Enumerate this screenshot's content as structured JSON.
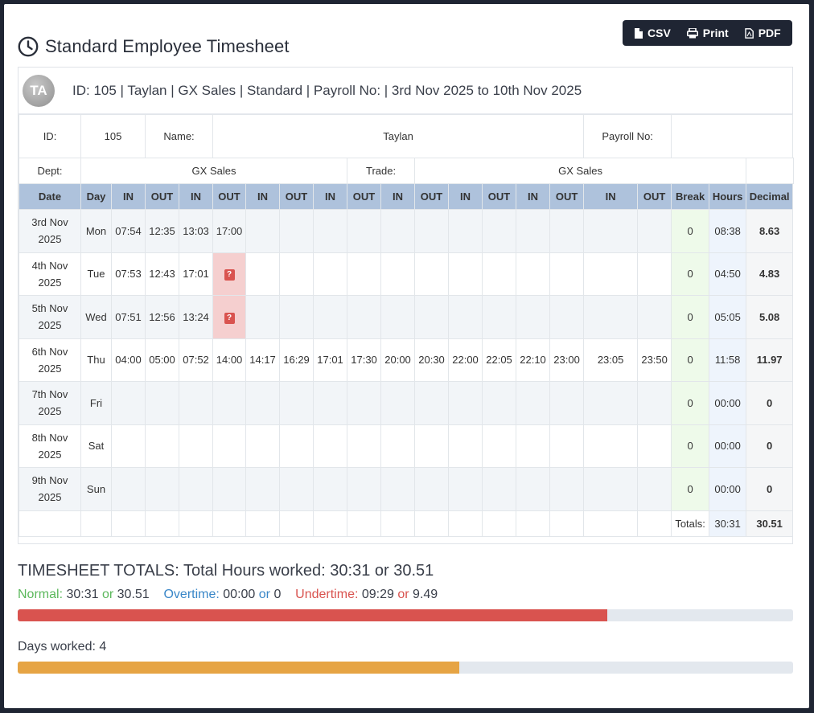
{
  "toolbar": {
    "csv_label": "CSV",
    "print_label": "Print",
    "pdf_label": "PDF"
  },
  "page_title": "Standard Employee Timesheet",
  "employee": {
    "initials": "TA",
    "header": "ID: 105 | Taylan | GX Sales | Standard | Payroll No: | 3rd Nov 2025 to 10th Nov 2025",
    "id_label": "ID:",
    "id_value": "105",
    "name_label": "Name:",
    "name_value": "Taylan",
    "payroll_label": "Payroll No:",
    "payroll_value": "",
    "dept_label": "Dept:",
    "dept_value": "GX Sales",
    "trade_label": "Trade:",
    "trade_value": "GX Sales"
  },
  "columns": [
    "Date",
    "Day",
    "IN",
    "OUT",
    "IN",
    "OUT",
    "IN",
    "OUT",
    "IN",
    "OUT",
    "IN",
    "OUT",
    "IN",
    "OUT",
    "IN",
    "OUT",
    "IN",
    "OUT",
    "Break",
    "Hours",
    "Decimal"
  ],
  "rows": [
    {
      "date": "3rd Nov 2025",
      "day": "Mon",
      "times": [
        "07:54",
        "12:35",
        "13:03",
        "17:00",
        "",
        "",
        "",
        "",
        "",
        "",
        "",
        "",
        "",
        "",
        "",
        ""
      ],
      "missing": -1,
      "break": "0",
      "hours": "08:38",
      "decimal": "8.63"
    },
    {
      "date": "4th Nov 2025",
      "day": "Tue",
      "times": [
        "07:53",
        "12:43",
        "17:01",
        "",
        "",
        "",
        "",
        "",
        "",
        "",
        "",
        "",
        "",
        "",
        "",
        ""
      ],
      "missing": 3,
      "break": "0",
      "hours": "04:50",
      "decimal": "4.83"
    },
    {
      "date": "5th Nov 2025",
      "day": "Wed",
      "times": [
        "07:51",
        "12:56",
        "13:24",
        "",
        "",
        "",
        "",
        "",
        "",
        "",
        "",
        "",
        "",
        "",
        "",
        ""
      ],
      "missing": 3,
      "break": "0",
      "hours": "05:05",
      "decimal": "5.08"
    },
    {
      "date": "6th Nov 2025",
      "day": "Thu",
      "times": [
        "04:00",
        "05:00",
        "07:52",
        "14:00",
        "14:17",
        "16:29",
        "17:01",
        "17:30",
        "20:00",
        "20:30",
        "22:00",
        "22:05",
        "22:10",
        "23:00",
        "23:05",
        "23:50"
      ],
      "missing": -1,
      "break": "0",
      "hours": "11:58",
      "decimal": "11.97"
    },
    {
      "date": "7th Nov 2025",
      "day": "Fri",
      "times": [
        "",
        "",
        "",
        "",
        "",
        "",
        "",
        "",
        "",
        "",
        "",
        "",
        "",
        "",
        "",
        ""
      ],
      "missing": -1,
      "break": "0",
      "hours": "00:00",
      "decimal": "0"
    },
    {
      "date": "8th Nov 2025",
      "day": "Sat",
      "times": [
        "",
        "",
        "",
        "",
        "",
        "",
        "",
        "",
        "",
        "",
        "",
        "",
        "",
        "",
        "",
        ""
      ],
      "missing": -1,
      "break": "0",
      "hours": "00:00",
      "decimal": "0"
    },
    {
      "date": "9th Nov 2025",
      "day": "Sun",
      "times": [
        "",
        "",
        "",
        "",
        "",
        "",
        "",
        "",
        "",
        "",
        "",
        "",
        "",
        "",
        "",
        ""
      ],
      "missing": -1,
      "break": "0",
      "hours": "00:00",
      "decimal": "0"
    }
  ],
  "missing_badge": "?",
  "totals": {
    "label": "Totals:",
    "hours": "30:31",
    "decimal": "30.51"
  },
  "summary": {
    "title": "TIMESHEET TOTALS: Total Hours worked: 30:31 or 30.51",
    "normal_label": "Normal:",
    "normal_hm": "30:31",
    "or1": "or",
    "normal_dec": "30.51",
    "overtime_label": "Overtime:",
    "overtime_hm": "00:00",
    "or2": "or",
    "overtime_dec": "0",
    "undertime_label": "Undertime:",
    "undertime_hm": "09:29",
    "or3": "or",
    "undertime_dec": "9.49",
    "normal_progress_pct": 76,
    "days_label": "Days worked: 4",
    "days_progress_pct": 57
  },
  "colors": {
    "red": "#d9534f",
    "orange": "#e6a444",
    "green": "#5cb85c",
    "blue": "#3a87c8"
  }
}
